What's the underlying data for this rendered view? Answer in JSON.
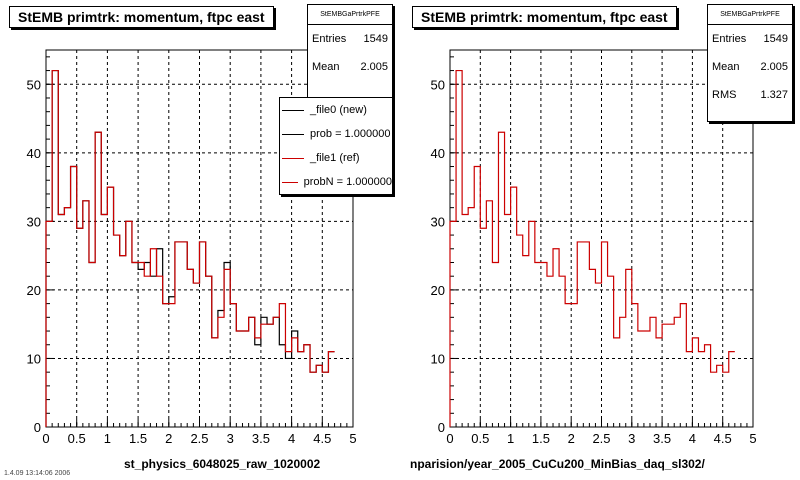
{
  "chart_data": [
    {
      "type": "bar",
      "title": "StEMB primtrk: momentum, ftpc east",
      "xlabel": "st_physics_6048025_raw_1020002",
      "ylabel": "",
      "xlim": [
        0,
        5
      ],
      "ylim": [
        0,
        55
      ],
      "xticks": [
        "0",
        "0.5",
        "1",
        "1.5",
        "2",
        "2.5",
        "3",
        "3.5",
        "4",
        "4.5",
        "5"
      ],
      "yticks": [
        "0",
        "10",
        "20",
        "30",
        "40",
        "50"
      ],
      "grid": true,
      "bin_edges_start": 0,
      "bin_width": 0.1,
      "series": [
        {
          "name": "_file0 (new)",
          "color": "#000000",
          "values": [
            30,
            52,
            31,
            32,
            38,
            29,
            33,
            24,
            43,
            31,
            35,
            28,
            25,
            30,
            24,
            23,
            24,
            22,
            26,
            18,
            19,
            27,
            27,
            23,
            21,
            27,
            22,
            13,
            17,
            24,
            18,
            14,
            14,
            16,
            12,
            16,
            15,
            16,
            12,
            10,
            14,
            11,
            12,
            8,
            9,
            8,
            11
          ]
        },
        {
          "name": "_file1 (ref)",
          "color": "#cc0000",
          "values": [
            30,
            52,
            31,
            32,
            38,
            29,
            33,
            24,
            43,
            31,
            35,
            28,
            25,
            30,
            24,
            24,
            22,
            26,
            22,
            18,
            18,
            27,
            27,
            23,
            21,
            27,
            22,
            13,
            16,
            23,
            18,
            14,
            14,
            16,
            13,
            15,
            15,
            16,
            18,
            11,
            13,
            11,
            12,
            8,
            9,
            8,
            11
          ]
        }
      ],
      "stats": {
        "header": "StEMBGaPrtrkPFE",
        "entries_label": "Entries",
        "entries": "1549",
        "mean_label": "Mean",
        "mean": "2.005"
      },
      "legend": {
        "placement": "top-right",
        "entries": [
          {
            "label": "_file0 (new)",
            "color": "#000000"
          },
          {
            "label": "prob = 1.000000",
            "color": "#000000"
          },
          {
            "label": "_file1 (ref)",
            "color": "#cc0000"
          },
          {
            "label": "probN = 1.000000",
            "color": "#cc0000"
          }
        ]
      }
    },
    {
      "type": "bar",
      "title": "StEMB primtrk: momentum, ftpc east",
      "xlabel": "nparision/year_2005_CuCu200_MinBias_daq_sl302/",
      "ylabel": "",
      "xlim": [
        0,
        5
      ],
      "ylim": [
        0,
        55
      ],
      "xticks": [
        "0",
        "0.5",
        "1",
        "1.5",
        "2",
        "2.5",
        "3",
        "3.5",
        "4",
        "4.5",
        "5"
      ],
      "yticks": [
        "0",
        "10",
        "20",
        "30",
        "40",
        "50"
      ],
      "grid": true,
      "bin_edges_start": 0,
      "bin_width": 0.1,
      "series": [
        {
          "name": "",
          "color": "#cc0000",
          "values": [
            30,
            52,
            31,
            32,
            38,
            29,
            33,
            24,
            43,
            31,
            35,
            28,
            25,
            30,
            24,
            24,
            22,
            26,
            22,
            18,
            18,
            27,
            27,
            23,
            21,
            27,
            22,
            13,
            16,
            23,
            18,
            14,
            14,
            16,
            13,
            15,
            15,
            16,
            18,
            11,
            13,
            11,
            12,
            8,
            9,
            8,
            11
          ]
        }
      ],
      "stats": {
        "header": "StEMBGaPrtrkPFE",
        "entries_label": "Entries",
        "entries": "1549",
        "mean_label": "Mean",
        "mean": "2.005",
        "rms_label": "RMS",
        "rms": "1.327"
      }
    }
  ],
  "footer": "1.4.09 13:14:06 2006"
}
